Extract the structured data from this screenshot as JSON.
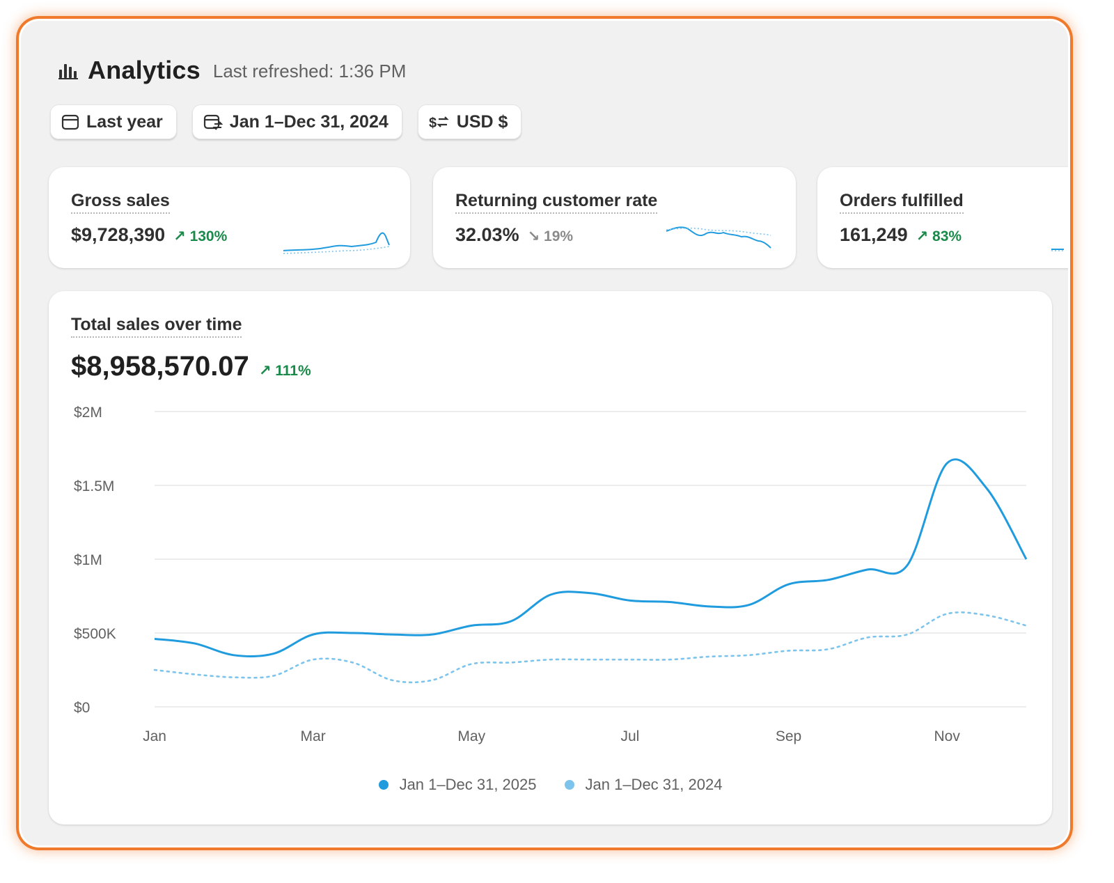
{
  "header": {
    "title": "Analytics",
    "refreshed": "Last refreshed: 1:36 PM",
    "icon": "bar-chart-icon"
  },
  "filters": {
    "period": "Last year",
    "comparison": "Jan 1–Dec 31, 2024",
    "currency": "USD $"
  },
  "metrics": [
    {
      "label": "Gross sales",
      "value": "$9,728,390",
      "delta": "130%",
      "trend": "up"
    },
    {
      "label": "Returning customer rate",
      "value": "32.03%",
      "delta": "19%",
      "trend": "down"
    },
    {
      "label": "Orders fulfilled",
      "value": "161,249",
      "delta": "83%",
      "trend": "up"
    }
  ],
  "colors": {
    "current_series": "#1f9bde",
    "previous_series": "#7cc4ec",
    "positive": "#1a8a4a",
    "frame_accent": "#f07a2c"
  },
  "chart": {
    "title": "Total sales over time",
    "total": "$8,958,570.07",
    "delta": "111%"
  },
  "chart_data": {
    "type": "line",
    "title": "Total sales over time",
    "xlabel": "",
    "ylabel": "",
    "x_ticks": [
      "Jan",
      "Mar",
      "May",
      "Jul",
      "Sep",
      "Nov"
    ],
    "y_ticks": [
      "$0",
      "$500K",
      "$1M",
      "$1.5M",
      "$2M"
    ],
    "ylim": [
      0,
      2000000
    ],
    "grid": true,
    "legend_position": "bottom",
    "x": [
      1,
      1.5,
      2,
      2.5,
      3,
      3.5,
      4,
      4.5,
      5,
      5.5,
      6,
      6.5,
      7,
      7.5,
      8,
      8.5,
      9,
      9.5,
      10,
      10.5,
      11,
      11.5,
      12
    ],
    "series": [
      {
        "name": "Jan 1–Dec 31, 2025",
        "style": "solid",
        "values": [
          460000,
          430000,
          350000,
          360000,
          490000,
          500000,
          490000,
          490000,
          550000,
          580000,
          760000,
          770000,
          720000,
          710000,
          680000,
          690000,
          830000,
          860000,
          930000,
          960000,
          1650000,
          1480000,
          1000000
        ]
      },
      {
        "name": "Jan 1–Dec 31, 2024",
        "style": "dotted",
        "values": [
          250000,
          220000,
          200000,
          210000,
          320000,
          300000,
          180000,
          180000,
          290000,
          300000,
          320000,
          320000,
          320000,
          320000,
          340000,
          350000,
          380000,
          390000,
          470000,
          490000,
          630000,
          620000,
          550000
        ]
      }
    ]
  }
}
